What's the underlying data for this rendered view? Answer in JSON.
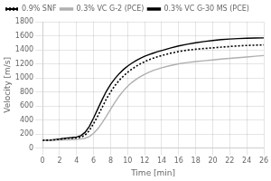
{
  "chart_data": {
    "type": "line",
    "xlabel": "Time [min]",
    "ylabel": "Velocity [m/s]",
    "x": [
      0,
      0.5,
      1,
      1.5,
      2,
      2.5,
      3,
      3.5,
      4,
      4.5,
      5,
      5.5,
      6,
      6.5,
      7,
      7.5,
      8,
      8.5,
      9,
      9.5,
      10,
      10.5,
      11,
      11.5,
      12,
      12.5,
      13,
      13.5,
      14,
      15,
      16,
      17,
      18,
      19,
      20,
      21,
      22,
      23,
      24,
      25,
      26
    ],
    "series": [
      {
        "name": "0.9% SNF",
        "color": "black",
        "line_style": "dotted",
        "values": [
          110,
          112,
          115,
          118,
          125,
          135,
          140,
          142,
          145,
          155,
          185,
          250,
          350,
          460,
          580,
          700,
          800,
          890,
          965,
          1025,
          1080,
          1125,
          1165,
          1200,
          1230,
          1258,
          1280,
          1300,
          1318,
          1350,
          1375,
          1395,
          1408,
          1418,
          1428,
          1438,
          1447,
          1455,
          1462,
          1466,
          1470
        ]
      },
      {
        "name": "0.3% VC G-2 (PCE)",
        "color": "#b0b0b0",
        "line_style": "solid",
        "values": [
          110,
          110,
          112,
          113,
          115,
          117,
          118,
          120,
          122,
          128,
          140,
          165,
          210,
          275,
          360,
          455,
          555,
          650,
          740,
          815,
          880,
          935,
          980,
          1018,
          1050,
          1080,
          1105,
          1125,
          1145,
          1175,
          1200,
          1218,
          1232,
          1244,
          1256,
          1268,
          1278,
          1288,
          1298,
          1308,
          1318
        ]
      },
      {
        "name": "0.3% VC G-30 MS (PCE)",
        "color": "black",
        "line_style": "solid",
        "values": [
          110,
          112,
          115,
          120,
          128,
          138,
          145,
          150,
          158,
          178,
          225,
          310,
          430,
          560,
          690,
          810,
          910,
          990,
          1060,
          1118,
          1168,
          1210,
          1248,
          1280,
          1308,
          1330,
          1352,
          1372,
          1390,
          1425,
          1455,
          1480,
          1500,
          1518,
          1533,
          1545,
          1554,
          1560,
          1564,
          1567,
          1570
        ]
      }
    ],
    "xlim": [
      0,
      26
    ],
    "ylim": [
      0,
      1800
    ],
    "xticks": [
      0,
      2,
      4,
      6,
      8,
      10,
      12,
      14,
      16,
      18,
      20,
      22,
      24,
      26
    ],
    "yticks": [
      0,
      200,
      400,
      600,
      800,
      1000,
      1200,
      1400,
      1600,
      1800
    ],
    "grid": true,
    "legend": "upper left"
  }
}
